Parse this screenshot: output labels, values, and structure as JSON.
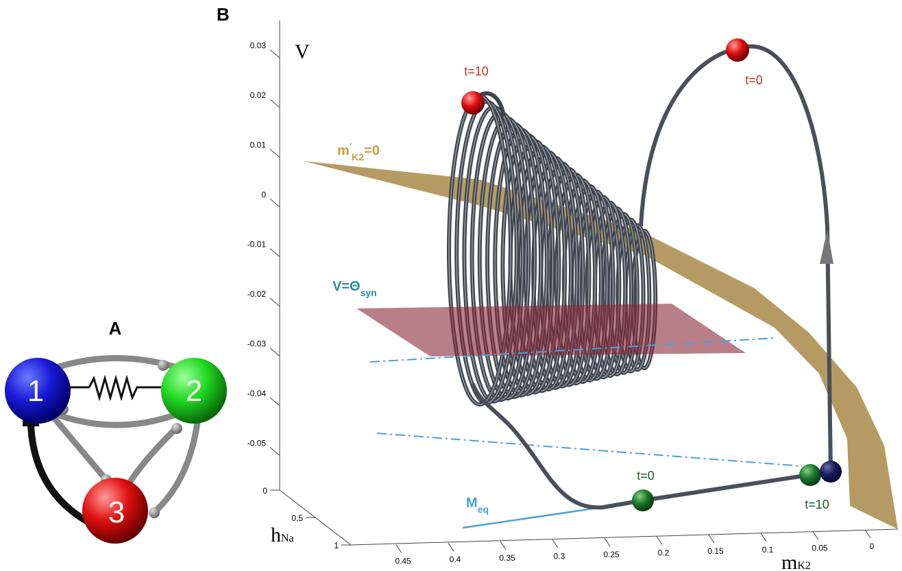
{
  "panel_a": {
    "label": "A",
    "nodes": [
      "1",
      "2",
      "3"
    ]
  },
  "panel_b": {
    "label": "B",
    "v_axis": {
      "name": "V",
      "ticks": [
        0.03,
        0.02,
        0.01,
        0,
        -0.01,
        -0.02,
        -0.03,
        -0.04,
        -0.05
      ]
    },
    "h_axis": {
      "name": "h",
      "sub": "Na",
      "ticks": [
        0,
        0.5,
        1
      ]
    },
    "m_axis": {
      "name": "m",
      "sub": "K2",
      "ticks": [
        0.45,
        0.4,
        0.35,
        0.3,
        0.25,
        0.2,
        0.15,
        0.1,
        0.05,
        0
      ]
    },
    "annotations": {
      "t10_red": "t=10",
      "t0_red": "t=0",
      "t0_green": "t=0",
      "t10_green": "t=10"
    },
    "nullcline": {
      "name": "m",
      "prime": "′",
      "sub": "K2",
      "rest": "=0"
    },
    "threshold": {
      "name": "V=Θ",
      "sub": "syn"
    },
    "meq": {
      "name": "M",
      "sub": "eq"
    }
  }
}
